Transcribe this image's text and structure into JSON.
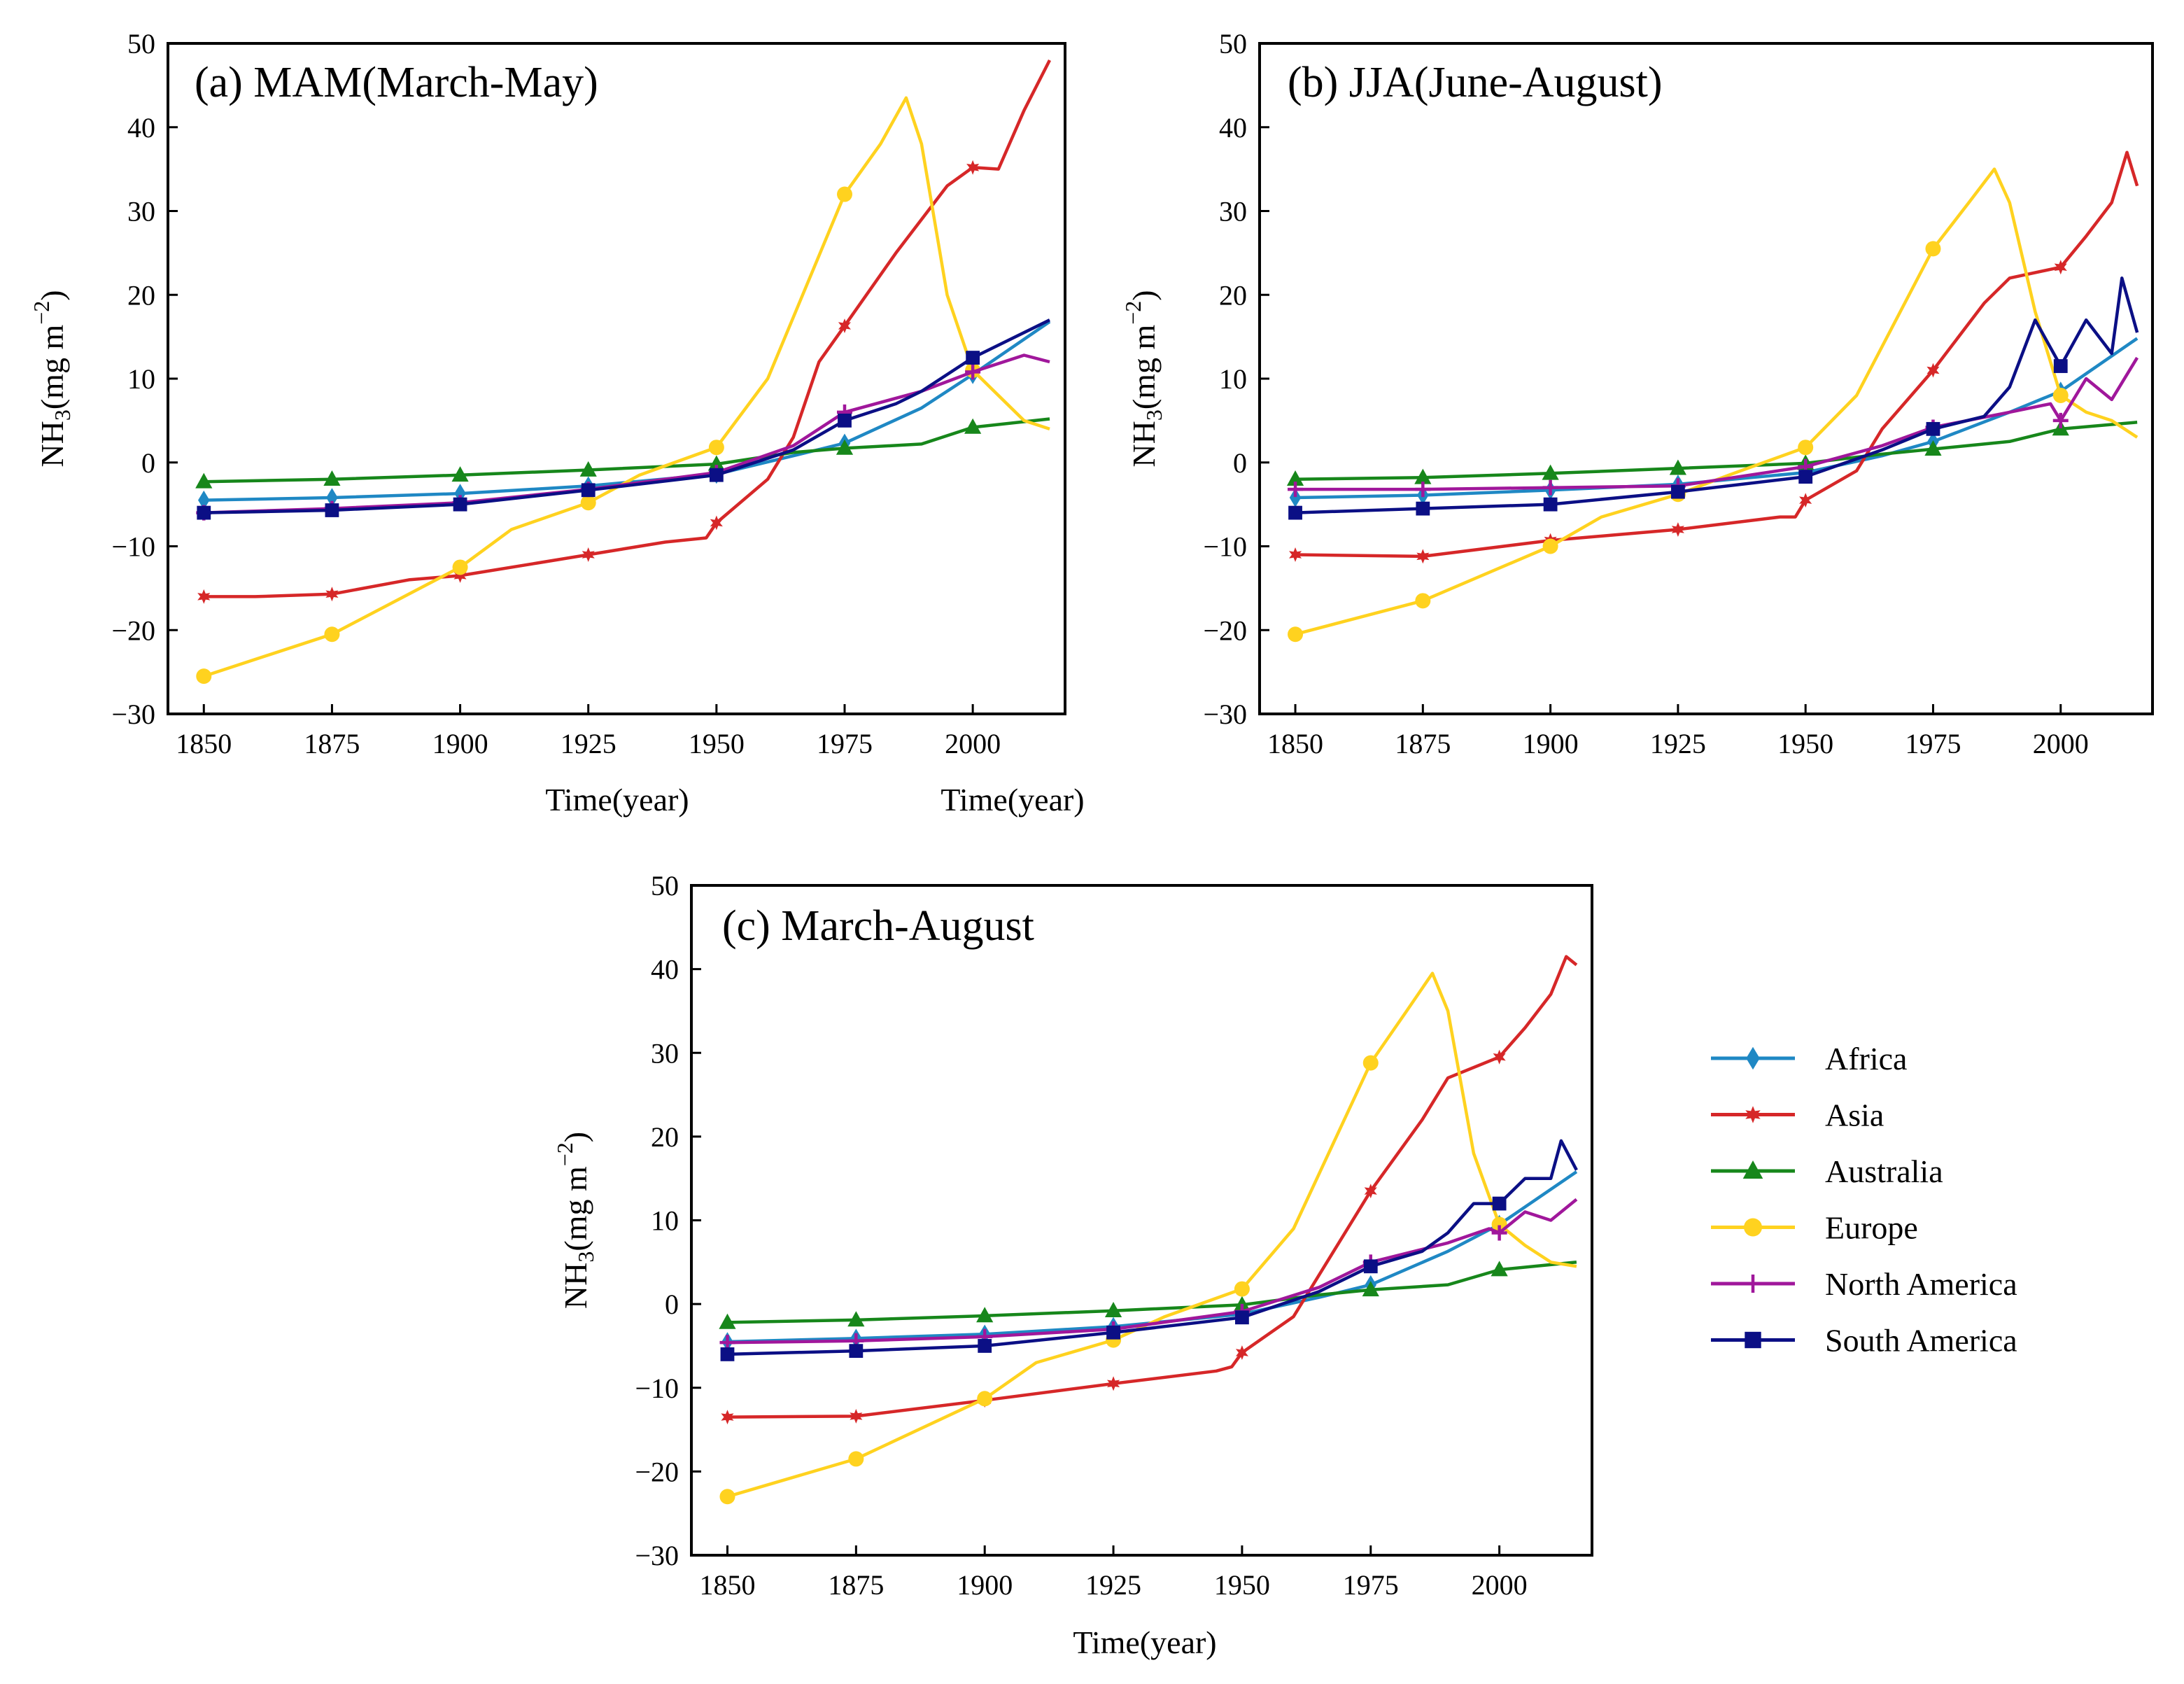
{
  "chart_data": [
    {
      "type": "line",
      "title": "(a) MAM(March-May)",
      "xlabel": "Time(year)",
      "ylabel": "NH3(mg m−2)",
      "ylabel_parts": {
        "base": "NH",
        "sub": "3",
        "mid": "(mg m",
        "sup": "−2",
        "end": ")"
      },
      "xlim": [
        1843,
        2018
      ],
      "ylim": [
        -30,
        50
      ],
      "xticks": [
        1850,
        1875,
        1900,
        1925,
        1950,
        1975,
        2000
      ],
      "yticks": [
        -30,
        -20,
        -10,
        0,
        10,
        20,
        30,
        40,
        50
      ],
      "x_tick_labels": [
        "1850",
        "1875",
        "1900",
        "1925",
        "1950",
        "1975",
        "2000"
      ],
      "y_tick_labels": [
        "−30",
        "−20",
        "−10",
        "0",
        "10",
        "20",
        "30",
        "40",
        "50"
      ],
      "series": [
        {
          "name": "Africa",
          "color": "#1f88c4",
          "marker": "diamond",
          "x": [
            1850,
            1875,
            1900,
            1925,
            1950,
            1965,
            1975,
            1990,
            2000,
            2015
          ],
          "y": [
            -4.5,
            -4.2,
            -3.7,
            -2.8,
            -1.4,
            0.8,
            2.3,
            6.5,
            10.5,
            16.8
          ]
        },
        {
          "name": "Asia",
          "color": "#d62728",
          "marker": "star",
          "x": [
            1850,
            1860,
            1875,
            1890,
            1900,
            1915,
            1925,
            1940,
            1948,
            1950,
            1960,
            1965,
            1970,
            1975,
            1985,
            1995,
            2000,
            2005,
            2010,
            2015
          ],
          "y": [
            -16,
            -16,
            -15.7,
            -14,
            -13.5,
            -12,
            -11,
            -9.5,
            -9,
            -7.2,
            -2,
            3,
            12,
            16.3,
            25,
            33,
            35.2,
            35,
            42,
            48
          ]
        },
        {
          "name": "Australia",
          "color": "#17871b",
          "marker": "triangle",
          "x": [
            1850,
            1875,
            1900,
            1925,
            1950,
            1965,
            1975,
            1990,
            2000,
            2015
          ],
          "y": [
            -2.3,
            -2,
            -1.5,
            -0.9,
            -0.2,
            1.2,
            1.7,
            2.2,
            4.2,
            5.2
          ]
        },
        {
          "name": "Europe",
          "color": "#ffd21f",
          "marker": "circle",
          "x": [
            1850,
            1875,
            1900,
            1910,
            1925,
            1935,
            1950,
            1960,
            1975,
            1982,
            1987,
            1990,
            1995,
            2000,
            2005,
            2010,
            2015
          ],
          "y": [
            -25.5,
            -20.5,
            -12.5,
            -8,
            -4.8,
            -1.5,
            1.8,
            10,
            32,
            38,
            43.5,
            38,
            20,
            11,
            8,
            5,
            4
          ]
        },
        {
          "name": "North America",
          "color": "#a0179b",
          "marker": "plus",
          "x": [
            1850,
            1875,
            1900,
            1925,
            1950,
            1965,
            1975,
            1990,
            2000,
            2010,
            2015
          ],
          "y": [
            -6,
            -5.5,
            -4.8,
            -3.2,
            -1.2,
            2,
            6,
            8.5,
            10.8,
            12.8,
            12
          ]
        },
        {
          "name": "South America",
          "color": "#0b0f85",
          "marker": "square",
          "x": [
            1850,
            1875,
            1900,
            1925,
            1950,
            1965,
            1975,
            1985,
            1990,
            2000,
            2015
          ],
          "y": [
            -6,
            -5.7,
            -5,
            -3.3,
            -1.5,
            1.5,
            5,
            7,
            8.5,
            12.5,
            17
          ]
        }
      ]
    },
    {
      "type": "line",
      "title": "(b) JJA(June-August)",
      "xlabel": "Time(year)",
      "ylabel": "NH3(mg m−2)",
      "ylabel_parts": {
        "base": "NH",
        "sub": "3",
        "mid": "(mg m",
        "sup": "−2",
        "end": ")"
      },
      "xlim": [
        1843,
        2018
      ],
      "ylim": [
        -30,
        50
      ],
      "xticks": [
        1850,
        1875,
        1900,
        1925,
        1950,
        1975,
        2000
      ],
      "yticks": [
        -30,
        -20,
        -10,
        0,
        10,
        20,
        30,
        40,
        50
      ],
      "x_tick_labels": [
        "1850",
        "1875",
        "1900",
        "1925",
        "1950",
        "1975",
        "2000"
      ],
      "y_tick_labels": [
        "−30",
        "−20",
        "−10",
        "0",
        "10",
        "20",
        "30",
        "40",
        "50"
      ],
      "series": [
        {
          "name": "Africa",
          "color": "#1f88c4",
          "marker": "diamond",
          "x": [
            1850,
            1875,
            1900,
            1925,
            1950,
            1965,
            1975,
            1990,
            2000,
            2015
          ],
          "y": [
            -4.2,
            -3.9,
            -3.3,
            -2.6,
            -1.2,
            0.8,
            2.5,
            6,
            8.5,
            14.8
          ]
        },
        {
          "name": "Asia",
          "color": "#d62728",
          "marker": "star",
          "x": [
            1850,
            1875,
            1900,
            1925,
            1945,
            1948,
            1950,
            1960,
            1965,
            1975,
            1985,
            1990,
            2000,
            2005,
            2010,
            2013,
            2015
          ],
          "y": [
            -11,
            -11.2,
            -9.3,
            -8,
            -6.5,
            -6.5,
            -4.5,
            -1,
            4,
            11,
            19,
            22,
            23.3,
            27,
            31,
            37,
            33
          ]
        },
        {
          "name": "Australia",
          "color": "#17871b",
          "marker": "triangle",
          "x": [
            1850,
            1875,
            1900,
            1925,
            1950,
            1965,
            1975,
            1990,
            2000,
            2015
          ],
          "y": [
            -2,
            -1.8,
            -1.3,
            -0.7,
            -0.1,
            1,
            1.6,
            2.5,
            4,
            4.8
          ]
        },
        {
          "name": "Europe",
          "color": "#ffd21f",
          "marker": "circle",
          "x": [
            1850,
            1875,
            1900,
            1910,
            1925,
            1935,
            1950,
            1960,
            1975,
            1982,
            1987,
            1990,
            1995,
            2000,
            2005,
            2010,
            2015
          ],
          "y": [
            -20.5,
            -16.5,
            -10,
            -6.5,
            -3.8,
            -1.5,
            1.8,
            8,
            25.5,
            31,
            35,
            31,
            18,
            8,
            6,
            5,
            3
          ]
        },
        {
          "name": "North America",
          "color": "#a0179b",
          "marker": "plus",
          "x": [
            1850,
            1875,
            1900,
            1925,
            1950,
            1965,
            1975,
            1990,
            1998,
            2000,
            2005,
            2010,
            2015
          ],
          "y": [
            -3.2,
            -3.2,
            -3,
            -2.8,
            -0.5,
            2,
            4.2,
            6,
            7,
            5,
            10,
            7.5,
            12.5
          ]
        },
        {
          "name": "South America",
          "color": "#0b0f85",
          "marker": "square",
          "x": [
            1850,
            1875,
            1900,
            1925,
            1950,
            1965,
            1975,
            1985,
            1990,
            1995,
            2000,
            2005,
            2010,
            2012,
            2015
          ],
          "y": [
            -6,
            -5.5,
            -5,
            -3.5,
            -1.7,
            1.5,
            4,
            5.5,
            9,
            17,
            11.5,
            17,
            13,
            22,
            15.5
          ]
        }
      ]
    },
    {
      "type": "line",
      "title": "(c) March-August",
      "xlabel": "Time(year)",
      "ylabel": "NH3(mg m−2)",
      "ylabel_parts": {
        "base": "NH",
        "sub": "3",
        "mid": "(mg m",
        "sup": "−2",
        "end": ")"
      },
      "xlim": [
        1843,
        2018
      ],
      "ylim": [
        -30,
        50
      ],
      "xticks": [
        1850,
        1875,
        1900,
        1925,
        1950,
        1975,
        2000
      ],
      "yticks": [
        -30,
        -20,
        -10,
        0,
        10,
        20,
        30,
        40,
        50
      ],
      "x_tick_labels": [
        "1850",
        "1875",
        "1900",
        "1925",
        "1950",
        "1975",
        "2000"
      ],
      "y_tick_labels": [
        "−30",
        "−20",
        "−10",
        "0",
        "10",
        "20",
        "30",
        "40",
        "50"
      ],
      "series": [
        {
          "name": "Africa",
          "color": "#1f88c4",
          "marker": "diamond",
          "x": [
            1850,
            1875,
            1900,
            1925,
            1950,
            1965,
            1975,
            1990,
            2000,
            2015
          ],
          "y": [
            -4.5,
            -4.1,
            -3.6,
            -2.7,
            -1.2,
            0.8,
            2.3,
            6.3,
            9.5,
            15.8
          ]
        },
        {
          "name": "Asia",
          "color": "#d62728",
          "marker": "star",
          "x": [
            1850,
            1875,
            1900,
            1925,
            1945,
            1948,
            1950,
            1960,
            1965,
            1975,
            1985,
            1990,
            2000,
            2005,
            2010,
            2013,
            2015
          ],
          "y": [
            -13.5,
            -13.4,
            -11.5,
            -9.5,
            -8,
            -7.5,
            -5.8,
            -1.5,
            3.5,
            13.5,
            22,
            27,
            29.5,
            33,
            37,
            41.5,
            40.5
          ]
        },
        {
          "name": "Australia",
          "color": "#17871b",
          "marker": "triangle",
          "x": [
            1850,
            1875,
            1900,
            1925,
            1950,
            1965,
            1975,
            1990,
            2000,
            2015
          ],
          "y": [
            -2.2,
            -1.9,
            -1.4,
            -0.8,
            -0.1,
            1.1,
            1.7,
            2.3,
            4.1,
            5
          ]
        },
        {
          "name": "Europe",
          "color": "#ffd21f",
          "marker": "circle",
          "x": [
            1850,
            1875,
            1900,
            1910,
            1925,
            1935,
            1950,
            1960,
            1975,
            1982,
            1987,
            1990,
            1995,
            2000,
            2005,
            2010,
            2015
          ],
          "y": [
            -23,
            -18.5,
            -11.3,
            -7,
            -4.3,
            -1.5,
            1.8,
            9,
            28.8,
            35,
            39.5,
            35,
            18,
            9.5,
            7,
            5,
            4.5
          ]
        },
        {
          "name": "North America",
          "color": "#a0179b",
          "marker": "plus",
          "x": [
            1850,
            1875,
            1900,
            1925,
            1950,
            1965,
            1975,
            1990,
            1998,
            2000,
            2005,
            2010,
            2015
          ],
          "y": [
            -4.6,
            -4.4,
            -3.9,
            -3,
            -0.9,
            2,
            5,
            7.3,
            9,
            8.5,
            11,
            10,
            12.5
          ]
        },
        {
          "name": "South America",
          "color": "#0b0f85",
          "marker": "square",
          "x": [
            1850,
            1875,
            1900,
            1925,
            1950,
            1965,
            1975,
            1985,
            1990,
            1995,
            2000,
            2005,
            2010,
            2012,
            2015
          ],
          "y": [
            -6,
            -5.6,
            -5,
            -3.4,
            -1.6,
            1.5,
            4.5,
            6.3,
            8.5,
            12,
            12,
            15,
            15,
            19.5,
            16
          ]
        }
      ]
    }
  ],
  "legend": {
    "placement": "right of panel (c)",
    "items": [
      {
        "label": "Africa",
        "color": "#1f88c4",
        "marker": "diamond"
      },
      {
        "label": "Asia",
        "color": "#d62728",
        "marker": "star"
      },
      {
        "label": "Australia",
        "color": "#17871b",
        "marker": "triangle"
      },
      {
        "label": "Europe",
        "color": "#ffd21f",
        "marker": "circle"
      },
      {
        "label": "North America",
        "color": "#a0179b",
        "marker": "plus"
      },
      {
        "label": "South America",
        "color": "#0b0f85",
        "marker": "square"
      }
    ]
  }
}
